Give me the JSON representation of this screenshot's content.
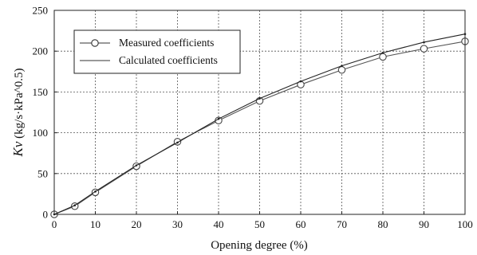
{
  "chart_data": {
    "type": "line",
    "title": "",
    "xlabel": "Opening degree (%)",
    "ylabel_italic": "Kv",
    "ylabel_units": " (kg/s·kPa^0.5)",
    "xlim": [
      0,
      100
    ],
    "ylim": [
      0,
      250
    ],
    "x_ticks": [
      0,
      10,
      20,
      30,
      40,
      50,
      60,
      70,
      80,
      90,
      100
    ],
    "y_ticks": [
      0,
      50,
      100,
      150,
      200,
      250
    ],
    "grid": "dotted",
    "legend_position": "top-left",
    "series": [
      {
        "name": "Measured coefficients",
        "style": "line-circle",
        "x": [
          0,
          5,
          10,
          20,
          30,
          40,
          50,
          60,
          70,
          80,
          90,
          100
        ],
        "y": [
          0,
          10,
          27,
          59,
          89,
          115,
          139,
          159,
          177,
          193,
          203,
          212
        ]
      },
      {
        "name": "Calculated coefficients",
        "style": "line",
        "x": [
          0,
          5,
          10,
          20,
          30,
          40,
          50,
          60,
          70,
          80,
          90,
          100
        ],
        "y": [
          0,
          11,
          28,
          60,
          88,
          117,
          142,
          163,
          182,
          198,
          211,
          221
        ]
      }
    ]
  }
}
